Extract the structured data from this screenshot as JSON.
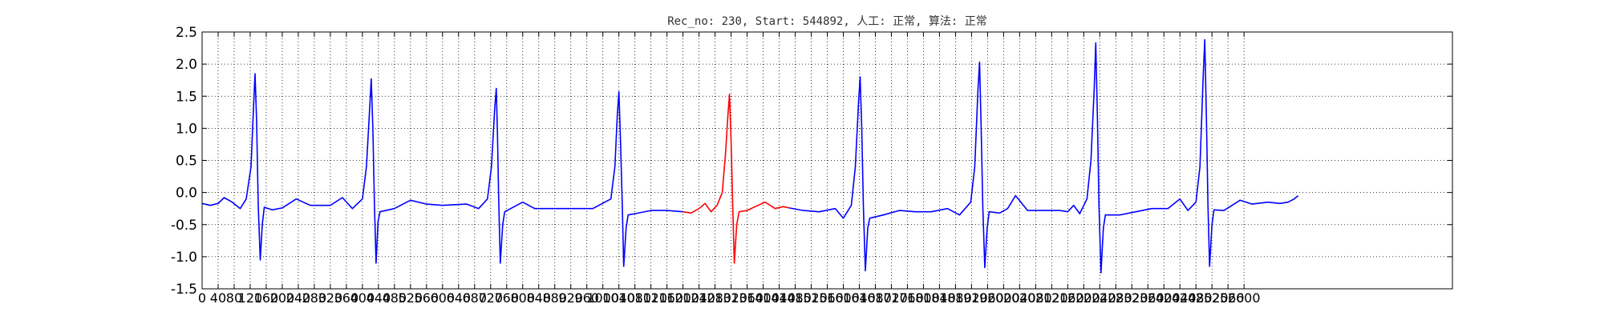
{
  "chart_data": {
    "type": "line",
    "title": "Rec_no: 230, Start: 544892, 人工: 正常, 算法: 正常",
    "xlabel": "",
    "ylabel": "",
    "xlim": [
      0,
      3120
    ],
    "ylim": [
      -1.5,
      2.5
    ],
    "grid": true,
    "y_ticks": [
      "-1.5",
      "-1.0",
      "-0.5",
      "0.0",
      "0.5",
      "1.0",
      "1.5",
      "2.0",
      "2.5"
    ],
    "x_ticks": [
      "0",
      "40",
      "80",
      "120",
      "160",
      "200",
      "240",
      "280",
      "320",
      "360",
      "400",
      "440",
      "480",
      "520",
      "560",
      "600",
      "640",
      "680",
      "720",
      "760",
      "800",
      "840",
      "880",
      "920",
      "960",
      "1000",
      "1040",
      "1080",
      "1120",
      "1160",
      "1200",
      "1240",
      "1280",
      "1320",
      "1360",
      "1400",
      "1440",
      "1480",
      "1520",
      "1560",
      "1600",
      "1640",
      "1680",
      "1720",
      "1760",
      "1800",
      "1840",
      "1880",
      "1920",
      "1960",
      "2000",
      "2040",
      "2080",
      "2120",
      "2160",
      "2200",
      "2240",
      "2280",
      "2320",
      "2360",
      "2400",
      "2440",
      "2480",
      "2520",
      "2560",
      "2600"
    ],
    "series": [
      {
        "color": "#0000ff",
        "points": [
          [
            0,
            -0.17
          ],
          [
            20,
            -0.2
          ],
          [
            40,
            -0.17
          ],
          [
            55,
            -0.08
          ],
          [
            75,
            -0.15
          ],
          [
            95,
            -0.25
          ],
          [
            110,
            -0.1
          ],
          [
            122,
            0.4
          ],
          [
            128,
            1.3
          ],
          [
            132,
            1.85
          ],
          [
            136,
            1.1
          ],
          [
            140,
            -0.2
          ],
          [
            145,
            -1.05
          ],
          [
            150,
            -0.5
          ],
          [
            155,
            -0.23
          ],
          [
            175,
            -0.27
          ],
          [
            200,
            -0.24
          ],
          [
            235,
            -0.1
          ],
          [
            270,
            -0.2
          ],
          [
            320,
            -0.2
          ],
          [
            350,
            -0.08
          ],
          [
            375,
            -0.25
          ],
          [
            400,
            -0.1
          ],
          [
            410,
            0.4
          ],
          [
            418,
            1.3
          ],
          [
            422,
            1.77
          ],
          [
            426,
            1.0
          ],
          [
            430,
            -0.2
          ],
          [
            434,
            -1.1
          ],
          [
            439,
            -0.45
          ],
          [
            444,
            -0.3
          ],
          [
            480,
            -0.25
          ],
          [
            520,
            -0.12
          ],
          [
            560,
            -0.18
          ],
          [
            600,
            -0.2
          ],
          [
            660,
            -0.18
          ],
          [
            690,
            -0.25
          ],
          [
            712,
            -0.1
          ],
          [
            722,
            0.4
          ],
          [
            730,
            1.3
          ],
          [
            734,
            1.62
          ],
          [
            737,
            0.9
          ],
          [
            740,
            -0.1
          ],
          [
            744,
            -1.1
          ],
          [
            750,
            -0.5
          ],
          [
            755,
            -0.3
          ],
          [
            770,
            -0.25
          ],
          [
            800,
            -0.15
          ],
          [
            830,
            -0.25
          ],
          [
            880,
            -0.25
          ],
          [
            920,
            -0.25
          ],
          [
            975,
            -0.25
          ],
          [
            1020,
            -0.1
          ],
          [
            1030,
            0.4
          ],
          [
            1036,
            1.2
          ],
          [
            1040,
            1.57
          ],
          [
            1044,
            0.8
          ],
          [
            1048,
            -0.1
          ],
          [
            1052,
            -1.15
          ],
          [
            1058,
            -0.55
          ],
          [
            1063,
            -0.35
          ],
          [
            1080,
            -0.33
          ],
          [
            1120,
            -0.28
          ],
          [
            1160,
            -0.28
          ],
          [
            1200,
            -0.3
          ]
        ]
      },
      {
        "color": "#ff0000",
        "points": [
          [
            1200,
            -0.3
          ],
          [
            1220,
            -0.32
          ],
          [
            1240,
            -0.25
          ],
          [
            1255,
            -0.17
          ],
          [
            1270,
            -0.3
          ],
          [
            1285,
            -0.2
          ],
          [
            1298,
            0.0
          ],
          [
            1306,
            0.6
          ],
          [
            1312,
            1.2
          ],
          [
            1316,
            1.53
          ],
          [
            1320,
            0.8
          ],
          [
            1324,
            -0.2
          ],
          [
            1328,
            -1.1
          ],
          [
            1334,
            -0.5
          ],
          [
            1340,
            -0.3
          ],
          [
            1360,
            -0.28
          ],
          [
            1380,
            -0.22
          ],
          [
            1405,
            -0.15
          ],
          [
            1430,
            -0.25
          ],
          [
            1450,
            -0.22
          ],
          [
            1465,
            -0.24
          ]
        ]
      },
      {
        "color": "#0000ff",
        "points": [
          [
            1465,
            -0.24
          ],
          [
            1500,
            -0.28
          ],
          [
            1540,
            -0.3
          ],
          [
            1580,
            -0.25
          ],
          [
            1600,
            -0.4
          ],
          [
            1620,
            -0.2
          ],
          [
            1630,
            0.4
          ],
          [
            1638,
            1.4
          ],
          [
            1642,
            1.8
          ],
          [
            1646,
            1.0
          ],
          [
            1650,
            -0.2
          ],
          [
            1655,
            -1.22
          ],
          [
            1661,
            -0.55
          ],
          [
            1666,
            -0.4
          ],
          [
            1700,
            -0.35
          ],
          [
            1740,
            -0.28
          ],
          [
            1780,
            -0.3
          ],
          [
            1820,
            -0.3
          ],
          [
            1860,
            -0.25
          ],
          [
            1890,
            -0.35
          ],
          [
            1918,
            -0.15
          ],
          [
            1928,
            0.4
          ],
          [
            1936,
            1.6
          ],
          [
            1940,
            2.03
          ],
          [
            1944,
            1.0
          ],
          [
            1948,
            -0.2
          ],
          [
            1953,
            -1.17
          ],
          [
            1959,
            -0.55
          ],
          [
            1964,
            -0.3
          ],
          [
            1990,
            -0.32
          ],
          [
            2010,
            -0.25
          ],
          [
            2030,
            -0.05
          ],
          [
            2060,
            -0.28
          ],
          [
            2100,
            -0.28
          ],
          [
            2140,
            -0.28
          ],
          [
            2160,
            -0.3
          ],
          [
            2175,
            -0.2
          ],
          [
            2190,
            -0.33
          ],
          [
            2208,
            -0.1
          ],
          [
            2218,
            0.5
          ],
          [
            2226,
            1.6
          ],
          [
            2230,
            2.33
          ],
          [
            2234,
            1.2
          ],
          [
            2238,
            -0.2
          ],
          [
            2243,
            -1.25
          ],
          [
            2249,
            -0.55
          ],
          [
            2254,
            -0.35
          ],
          [
            2290,
            -0.35
          ],
          [
            2330,
            -0.3
          ],
          [
            2370,
            -0.25
          ],
          [
            2410,
            -0.25
          ],
          [
            2440,
            -0.1
          ],
          [
            2460,
            -0.28
          ],
          [
            2480,
            -0.15
          ],
          [
            2490,
            0.4
          ],
          [
            2498,
            1.8
          ],
          [
            2502,
            2.38
          ],
          [
            2506,
            1.2
          ],
          [
            2510,
            -0.2
          ],
          [
            2514,
            -1.15
          ],
          [
            2520,
            -0.5
          ],
          [
            2525,
            -0.27
          ],
          [
            2550,
            -0.28
          ],
          [
            2570,
            -0.2
          ],
          [
            2590,
            -0.12
          ],
          [
            2620,
            -0.18
          ],
          [
            2660,
            -0.15
          ],
          [
            2690,
            -0.17
          ],
          [
            2710,
            -0.15
          ],
          [
            2725,
            -0.1
          ],
          [
            2735,
            -0.05
          ]
        ]
      }
    ]
  }
}
